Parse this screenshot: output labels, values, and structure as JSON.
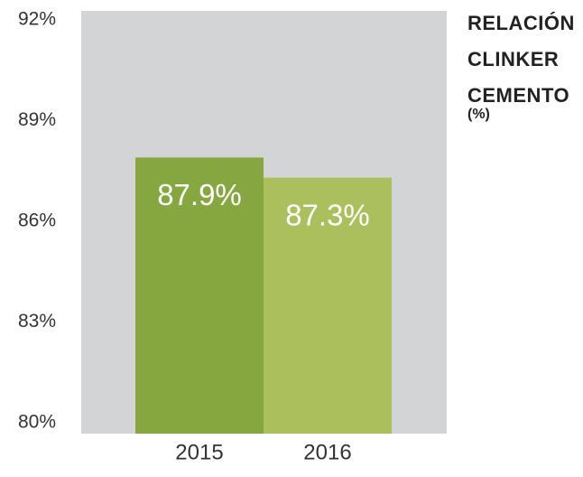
{
  "chart_data": {
    "type": "bar",
    "title": "RELACIÓN CLINKER CEMENTO",
    "subtitle": "(%)",
    "categories": [
      "2015",
      "2016"
    ],
    "values": [
      87.9,
      87.3
    ],
    "value_labels": [
      "87.9%",
      "87.3%"
    ],
    "colors": [
      "#86a73f",
      "#abc05c"
    ],
    "ylim": [
      80,
      92
    ],
    "yticks": [
      {
        "value": 80,
        "label": "80%"
      },
      {
        "value": 83,
        "label": "83%"
      },
      {
        "value": 86,
        "label": "86%"
      },
      {
        "value": 89,
        "label": "89%"
      },
      {
        "value": 92,
        "label": "92%"
      }
    ]
  }
}
